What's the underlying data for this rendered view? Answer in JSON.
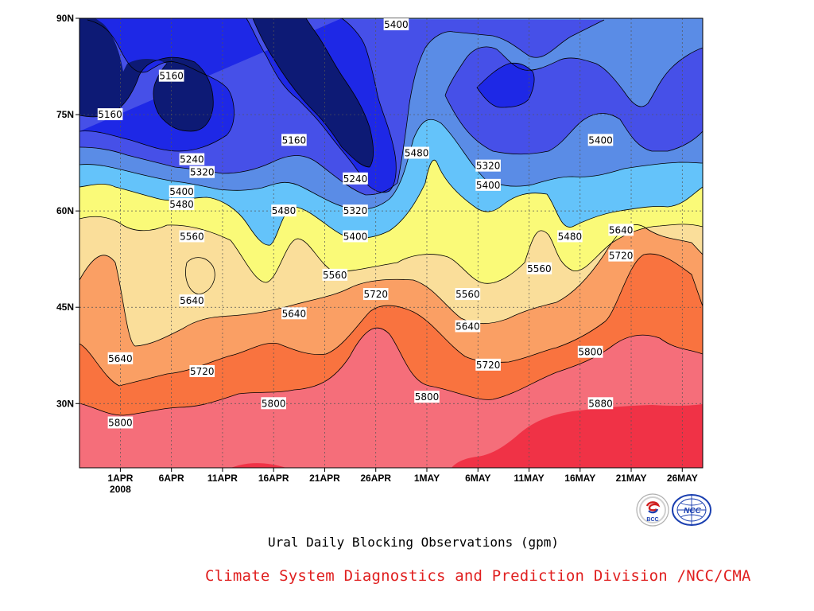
{
  "chart_data": {
    "type": "heatmap",
    "title": "",
    "xlabel": "",
    "ylabel": "",
    "x_ticks": [
      "1APR",
      "6APR",
      "11APR",
      "16APR",
      "21APR",
      "26APR",
      "1MAY",
      "6MAY",
      "11MAY",
      "16MAY",
      "21MAY",
      "26MAY"
    ],
    "x_tick_year": "2008",
    "y_ticks": [
      "30N",
      "45N",
      "60N",
      "75N",
      "90N"
    ],
    "ylim": [
      20,
      90
    ],
    "levels": [
      5160,
      5240,
      5320,
      5400,
      5480,
      5560,
      5640,
      5720,
      5800,
      5880
    ],
    "level_colors": [
      "#0d1a75",
      "#1e28e6",
      "#4650e8",
      "#5a8ce6",
      "#64c3fa",
      "#fafa78",
      "#fade9a",
      "#fa9f64",
      "#f9733f",
      "#f56e7a",
      "#f03246"
    ],
    "grid": true,
    "contour_labels": [
      {
        "value": "5400",
        "x": "28APR",
        "y": "89N"
      },
      {
        "value": "5160",
        "x": "6APR",
        "y": "81N"
      },
      {
        "value": "5160",
        "x": "31MAR",
        "y": "75N"
      },
      {
        "value": "5160",
        "x": "18APR",
        "y": "71N"
      },
      {
        "value": "5240",
        "x": "8APR",
        "y": "68N"
      },
      {
        "value": "5320",
        "x": "9APR",
        "y": "66N"
      },
      {
        "value": "5400",
        "x": "7APR",
        "y": "63N"
      },
      {
        "value": "5480",
        "x": "7APR",
        "y": "61N"
      },
      {
        "value": "5560",
        "x": "8APR",
        "y": "56N"
      },
      {
        "value": "5240",
        "x": "24APR",
        "y": "65N"
      },
      {
        "value": "5320",
        "x": "24APR",
        "y": "60N"
      },
      {
        "value": "5400",
        "x": "24APR",
        "y": "56N"
      },
      {
        "value": "5480",
        "x": "17APR",
        "y": "60N"
      },
      {
        "value": "5480",
        "x": "30APR",
        "y": "69N"
      },
      {
        "value": "5320",
        "x": "7MAY",
        "y": "67N"
      },
      {
        "value": "5400",
        "x": "7MAY",
        "y": "64N"
      },
      {
        "value": "5400",
        "x": "18MAY",
        "y": "71N"
      },
      {
        "value": "5480",
        "x": "15MAY",
        "y": "56N"
      },
      {
        "value": "5640",
        "x": "20MAY",
        "y": "57N"
      },
      {
        "value": "5720",
        "x": "20MAY",
        "y": "53N"
      },
      {
        "value": "5560",
        "x": "12MAY",
        "y": "51N"
      },
      {
        "value": "5560",
        "x": "22APR",
        "y": "50N"
      },
      {
        "value": "5560",
        "x": "5MAY",
        "y": "47N"
      },
      {
        "value": "5640",
        "x": "8APR",
        "y": "46N"
      },
      {
        "value": "5640",
        "x": "18APR",
        "y": "44N"
      },
      {
        "value": "5720",
        "x": "26APR",
        "y": "47N"
      },
      {
        "value": "5640",
        "x": "5MAY",
        "y": "42N"
      },
      {
        "value": "5640",
        "x": "1APR",
        "y": "37N"
      },
      {
        "value": "5720",
        "x": "9APR",
        "y": "35N"
      },
      {
        "value": "5720",
        "x": "7MAY",
        "y": "36N"
      },
      {
        "value": "5800",
        "x": "17MAY",
        "y": "38N"
      },
      {
        "value": "5800",
        "x": "16APR",
        "y": "30N"
      },
      {
        "value": "5800",
        "x": "1MAY",
        "y": "31N"
      },
      {
        "value": "5880",
        "x": "18MAY",
        "y": "30N"
      },
      {
        "value": "5800",
        "x": "1APR",
        "y": "27N"
      }
    ]
  },
  "caption": "Ural Daily Blocking Observations (gpm)",
  "credit": "Climate System Diagnostics and Prediction Division /NCC/CMA",
  "logos": {
    "bcc": {
      "name": "bcc-logo",
      "text": "BCC"
    },
    "ncc": {
      "name": "ncc-logo",
      "text": "NCC"
    }
  }
}
